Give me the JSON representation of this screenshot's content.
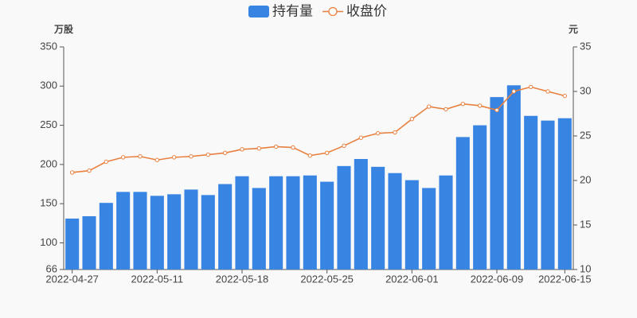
{
  "chart_data": {
    "type": "bar",
    "legend": "top",
    "grid": false,
    "y_label": "万股",
    "y2_label": "元",
    "categories": [
      "2022-04-27",
      null,
      null,
      null,
      null,
      "2022-05-11",
      null,
      null,
      null,
      null,
      "2022-05-18",
      null,
      null,
      null,
      null,
      "2022-05-25",
      null,
      null,
      null,
      null,
      "2022-06-01",
      null,
      null,
      null,
      null,
      "2022-06-09",
      null,
      null,
      null,
      "2022-06-15"
    ],
    "series": [
      {
        "name": "持有量",
        "type": "bar",
        "color": "#3884e3",
        "values": [
          131,
          134,
          151,
          165,
          165,
          160,
          162,
          168,
          161,
          175,
          185,
          170,
          185,
          185,
          186,
          178,
          198,
          207,
          197,
          189,
          180,
          170,
          186,
          235,
          250,
          286,
          301,
          262,
          256,
          259
        ]
      },
      {
        "name": "收盘价",
        "type": "line",
        "axis": "y2",
        "color": "#e8803f",
        "values": [
          20.9,
          21.1,
          22.1,
          22.6,
          22.7,
          22.3,
          22.6,
          22.7,
          22.9,
          23.1,
          23.5,
          23.6,
          23.8,
          23.7,
          22.8,
          23.1,
          23.9,
          24.8,
          25.3,
          25.4,
          26.9,
          28.3,
          28.0,
          28.6,
          28.4,
          27.9,
          30.0,
          30.5,
          30.0,
          29.5
        ]
      }
    ],
    "ylim": [
      66,
      350
    ],
    "yticks": [
      66,
      100,
      150,
      200,
      250,
      300,
      350
    ],
    "y2lim": [
      10,
      35
    ],
    "y2ticks": [
      10,
      15,
      20,
      25,
      30,
      35
    ]
  }
}
